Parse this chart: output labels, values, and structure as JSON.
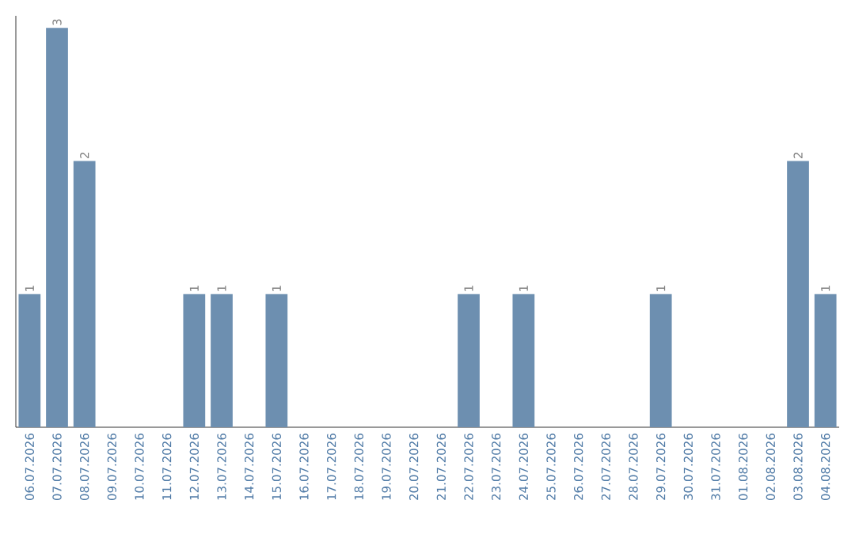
{
  "chart_data": {
    "type": "bar",
    "categories": [
      "06.07.2026",
      "07.07.2026",
      "08.07.2026",
      "09.07.2026",
      "10.07.2026",
      "11.07.2026",
      "12.07.2026",
      "13.07.2026",
      "14.07.2026",
      "15.07.2026",
      "16.07.2026",
      "17.07.2026",
      "18.07.2026",
      "19.07.2026",
      "20.07.2026",
      "21.07.2026",
      "22.07.2026",
      "23.07.2026",
      "24.07.2026",
      "25.07.2026",
      "26.07.2026",
      "27.07.2026",
      "28.07.2026",
      "29.07.2026",
      "30.07.2026",
      "31.07.2026",
      "01.08.2026",
      "02.08.2026",
      "03.08.2026",
      "04.08.2026"
    ],
    "values": [
      1,
      3,
      2,
      0,
      0,
      0,
      1,
      1,
      0,
      1,
      0,
      0,
      0,
      0,
      0,
      0,
      1,
      0,
      1,
      0,
      0,
      0,
      0,
      1,
      0,
      0,
      0,
      0,
      2,
      1
    ],
    "value_labels": [
      "1",
      "3",
      "2",
      null,
      null,
      null,
      "1",
      "1",
      null,
      "1",
      null,
      null,
      null,
      null,
      null,
      null,
      "1",
      null,
      "1",
      null,
      null,
      null,
      null,
      "1",
      null,
      null,
      null,
      null,
      "2",
      "1"
    ],
    "color": "#6d8fb0"
  }
}
